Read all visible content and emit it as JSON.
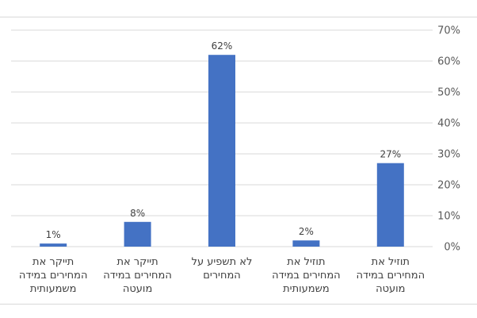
{
  "chart_data": {
    "type": "bar",
    "direction": "rtl",
    "categories": [
      [
        "תוזיל את",
        "המחירים במידה",
        "מועטה"
      ],
      [
        "תוזיל את",
        "המחירים במידה",
        "משמעותית"
      ],
      [
        "לא תשפיע על",
        "המחירים"
      ],
      [
        "תייקר את",
        "המחירים במידה",
        "מועטה"
      ],
      [
        "תייקר את",
        "המחירים במידה",
        "משמעותית"
      ]
    ],
    "values": [
      27,
      2,
      62,
      8,
      1
    ],
    "data_labels": [
      "27%",
      "2%",
      "62%",
      "8%",
      "1%"
    ],
    "y_ticks": [
      "0%",
      "10%",
      "20%",
      "30%",
      "40%",
      "50%",
      "60%",
      "70%"
    ],
    "ylim": [
      0,
      70
    ],
    "y_axis_side": "right",
    "grid": true,
    "legend": "none",
    "colors": {
      "bar": "#4472C4",
      "grid": "#d9d9d9",
      "text": "#404040",
      "tick": "#595959"
    }
  }
}
